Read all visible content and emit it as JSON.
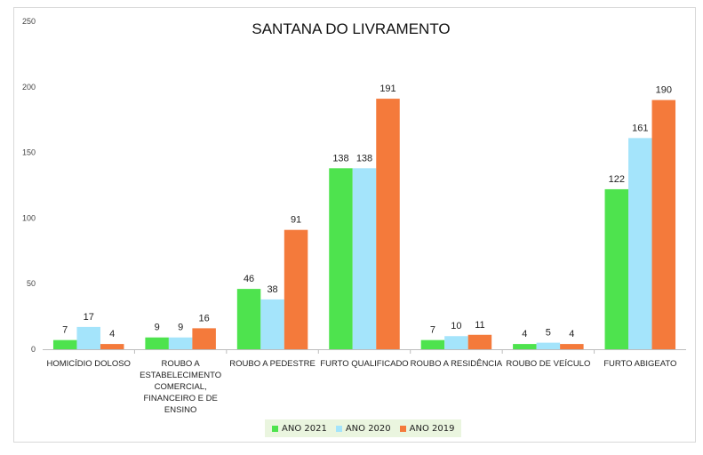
{
  "chart_data": {
    "type": "bar",
    "title": "SANTANA DO LIVRAMENTO",
    "xlabel": "",
    "ylabel": "",
    "ylim": [
      0,
      250
    ],
    "yticks": [
      0,
      50,
      100,
      150,
      200,
      250
    ],
    "grid": false,
    "legend_position": "bottom",
    "categories": [
      [
        "HOMICÍDIO DOLOSO"
      ],
      [
        "ROUBO A",
        "ESTABELECIMENTO",
        "COMERCIAL,",
        "FINANCEIRO E DE",
        "ENSINO"
      ],
      [
        "ROUBO A PEDESTRE"
      ],
      [
        "FURTO QUALIFICADO"
      ],
      [
        "ROUBO A RESIDÊNCIA"
      ],
      [
        "ROUBO DE VEÍCULO"
      ],
      [
        "FURTO ABIGEATO"
      ]
    ],
    "series": [
      {
        "name": "ANO 2021",
        "color": "#4ee34e",
        "values": [
          7,
          9,
          46,
          138,
          7,
          4,
          122
        ]
      },
      {
        "name": "ANO 2020",
        "color": "#a4e4fb",
        "values": [
          17,
          9,
          38,
          138,
          10,
          5,
          161
        ]
      },
      {
        "name": "ANO 2019",
        "color": "#f47a3b",
        "values": [
          4,
          16,
          91,
          191,
          11,
          4,
          190
        ]
      }
    ]
  }
}
